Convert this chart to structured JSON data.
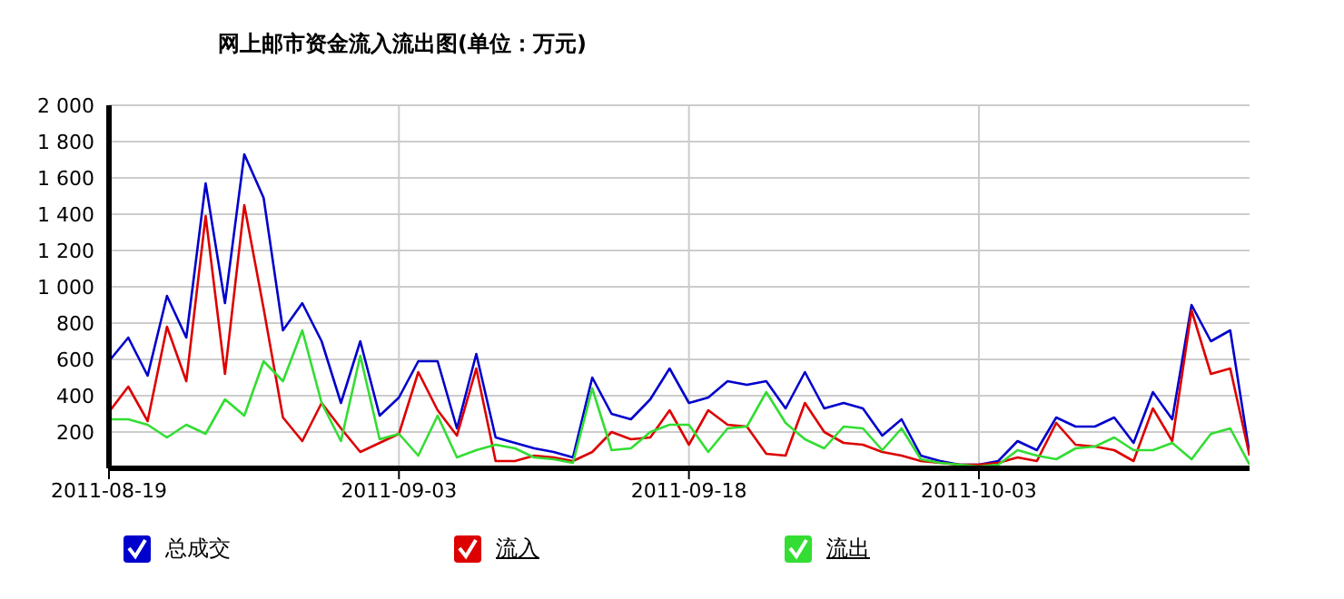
{
  "chart_data": {
    "type": "line",
    "title": "网上邮市资金流入流出图(单位：万元)",
    "x": [
      "2011-08-19",
      "2011-08-20",
      "2011-08-21",
      "2011-08-22",
      "2011-08-23",
      "2011-08-24",
      "2011-08-25",
      "2011-08-26",
      "2011-08-27",
      "2011-08-28",
      "2011-08-29",
      "2011-08-30",
      "2011-08-31",
      "2011-09-01",
      "2011-09-02",
      "2011-09-03",
      "2011-09-04",
      "2011-09-05",
      "2011-09-06",
      "2011-09-07",
      "2011-09-08",
      "2011-09-09",
      "2011-09-10",
      "2011-09-11",
      "2011-09-12",
      "2011-09-13",
      "2011-09-14",
      "2011-09-15",
      "2011-09-16",
      "2011-09-17",
      "2011-09-18",
      "2011-09-19",
      "2011-09-20",
      "2011-09-21",
      "2011-09-22",
      "2011-09-23",
      "2011-09-24",
      "2011-09-25",
      "2011-09-26",
      "2011-09-27",
      "2011-09-28",
      "2011-09-29",
      "2011-09-30",
      "2011-10-01",
      "2011-10-02",
      "2011-10-03",
      "2011-10-04",
      "2011-10-05",
      "2011-10-06",
      "2011-10-07",
      "2011-10-08",
      "2011-10-09",
      "2011-10-10",
      "2011-10-11",
      "2011-10-12",
      "2011-10-13",
      "2011-10-14",
      "2011-10-15",
      "2011-10-16",
      "2011-10-17"
    ],
    "series": [
      {
        "name": "总成交",
        "color": "#0000cc",
        "values": [
          590,
          720,
          510,
          950,
          720,
          1570,
          910,
          1730,
          1490,
          760,
          910,
          700,
          360,
          700,
          290,
          390,
          590,
          590,
          220,
          630,
          170,
          140,
          110,
          90,
          60,
          500,
          300,
          270,
          380,
          550,
          360,
          390,
          480,
          460,
          480,
          330,
          530,
          330,
          360,
          330,
          180,
          270,
          70,
          40,
          20,
          20,
          40,
          150,
          100,
          280,
          230,
          230,
          280,
          140,
          420,
          270,
          900,
          700,
          760,
          80
        ]
      },
      {
        "name": "流入",
        "color": "#dd0000",
        "values": [
          310,
          450,
          260,
          780,
          480,
          1390,
          520,
          1450,
          880,
          280,
          150,
          360,
          220,
          90,
          140,
          190,
          530,
          320,
          180,
          550,
          40,
          40,
          70,
          60,
          40,
          90,
          200,
          160,
          170,
          320,
          130,
          320,
          240,
          230,
          80,
          70,
          360,
          200,
          140,
          130,
          90,
          70,
          40,
          30,
          20,
          20,
          30,
          60,
          40,
          250,
          130,
          120,
          100,
          40,
          330,
          150,
          870,
          520,
          550,
          70
        ]
      },
      {
        "name": "流出",
        "color": "#33dd33",
        "values": [
          270,
          270,
          240,
          170,
          240,
          190,
          380,
          290,
          590,
          480,
          760,
          360,
          150,
          620,
          160,
          190,
          70,
          290,
          60,
          100,
          130,
          110,
          60,
          50,
          30,
          440,
          100,
          110,
          200,
          240,
          240,
          90,
          220,
          230,
          420,
          250,
          160,
          110,
          230,
          220,
          100,
          220,
          50,
          30,
          20,
          10,
          20,
          100,
          70,
          50,
          110,
          120,
          170,
          100,
          100,
          140,
          50,
          190,
          220,
          20
        ]
      }
    ],
    "xlim": [
      "2011-08-19",
      "2011-10-17"
    ],
    "xticks": [
      "2011-08-19",
      "2011-09-03",
      "2011-09-18",
      "2011-10-03"
    ],
    "ylim": [
      0,
      2000
    ],
    "yticks": [
      200,
      400,
      600,
      800,
      {
        "value": 1000,
        "label": "1 000"
      },
      {
        "value": 1200,
        "label": "1 200"
      },
      {
        "value": 1400,
        "label": "1 400"
      },
      {
        "value": 1600,
        "label": "1 600"
      },
      {
        "value": 1800,
        "label": "1 800"
      },
      {
        "value": 2000,
        "label": "2 000"
      }
    ],
    "grid": true,
    "legend": "bottom",
    "marker": "none",
    "line_style": "solid"
  }
}
